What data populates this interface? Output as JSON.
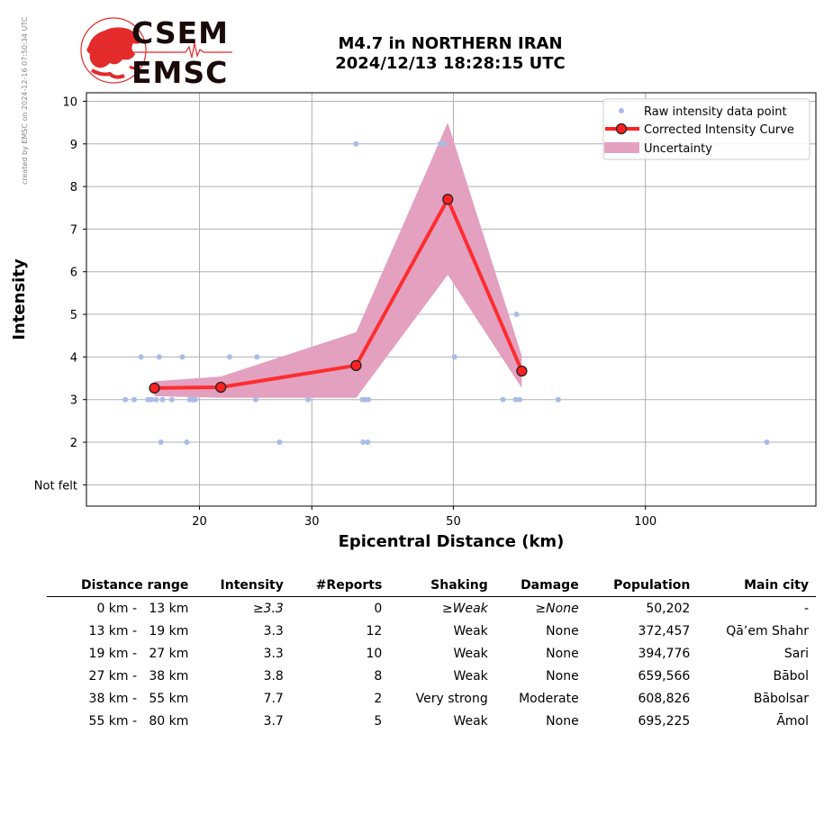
{
  "credit": "created by EMSC on 2024-12-16 07:50:34 UTC",
  "logo": {
    "line1": "CSEM",
    "line2": "EMSC"
  },
  "title": {
    "line1": "M4.7 in NORTHERN IRAN",
    "line2": "2024/12/13 18:28:15 UTC"
  },
  "chart_data": {
    "type": "line",
    "xlabel": "Epicentral Distance (km)",
    "ylabel": "Intensity",
    "x_scale": "log",
    "x_ticks": [
      20,
      30,
      50,
      100
    ],
    "y_ticks": [
      {
        "v": 1,
        "label": "Not felt"
      },
      {
        "v": 2,
        "label": "2"
      },
      {
        "v": 3,
        "label": "3"
      },
      {
        "v": 4,
        "label": "4"
      },
      {
        "v": 5,
        "label": "5"
      },
      {
        "v": 6,
        "label": "6"
      },
      {
        "v": 7,
        "label": "7"
      },
      {
        "v": 8,
        "label": "8"
      },
      {
        "v": 9,
        "label": "9"
      },
      {
        "v": 10,
        "label": "10"
      }
    ],
    "xlim": [
      13.3,
      185
    ],
    "ylim": [
      0.5,
      10.2
    ],
    "grid": true,
    "legend_position": "top-right",
    "legend": [
      "Raw intensity data point",
      "Corrected Intensity Curve",
      "Uncertainty"
    ],
    "colors": {
      "raw": "#aabbe8",
      "curve": "#ff2020",
      "marker_edge": "#222222",
      "band": "#e4a0bf"
    },
    "raw_points": [
      [
        15.3,
        3
      ],
      [
        15.8,
        3
      ],
      [
        16.2,
        4
      ],
      [
        16.6,
        3
      ],
      [
        16.8,
        3
      ],
      [
        17.1,
        3
      ],
      [
        17.3,
        4
      ],
      [
        17.4,
        2
      ],
      [
        17.5,
        3
      ],
      [
        18.1,
        3
      ],
      [
        18.8,
        4
      ],
      [
        19.1,
        2
      ],
      [
        19.3,
        3
      ],
      [
        19.5,
        3
      ],
      [
        19.7,
        3
      ],
      [
        22.3,
        4
      ],
      [
        24.5,
        3
      ],
      [
        24.6,
        4
      ],
      [
        26.7,
        2
      ],
      [
        29.6,
        3
      ],
      [
        35.2,
        9
      ],
      [
        36.0,
        3
      ],
      [
        36.1,
        2
      ],
      [
        36.4,
        3
      ],
      [
        36.7,
        2
      ],
      [
        36.8,
        3
      ],
      [
        47.7,
        9
      ],
      [
        48.4,
        9
      ],
      [
        50.2,
        4
      ],
      [
        59.8,
        3
      ],
      [
        62.6,
        3
      ],
      [
        62.8,
        5
      ],
      [
        63.5,
        3
      ],
      [
        73.0,
        3
      ],
      [
        155.0,
        2
      ]
    ],
    "curve": {
      "name": "Corrected Intensity Curve",
      "x": [
        17.0,
        21.6,
        35.2,
        49.0,
        64.0
      ],
      "y": [
        3.27,
        3.29,
        3.8,
        7.7,
        3.67
      ]
    },
    "uncertainty": {
      "x": [
        17.0,
        21.6,
        35.2,
        49.0,
        64.0
      ],
      "lower": [
        3.08,
        3.04,
        3.04,
        5.93,
        3.27
      ],
      "upper": [
        3.43,
        3.54,
        4.58,
        9.5,
        4.03
      ]
    }
  },
  "table": {
    "headers": [
      "Distance range",
      "Intensity",
      "#Reports",
      "Shaking",
      "Damage",
      "Population",
      "Main city"
    ],
    "rows": [
      {
        "cells": [
          "0 km -   13 km",
          "≥3.3",
          "0",
          "≥Weak",
          "≥None",
          "50,202",
          "-"
        ],
        "italic": [
          1,
          3,
          4
        ]
      },
      {
        "cells": [
          "13 km -   19 km",
          "3.3",
          "12",
          "Weak",
          "None",
          "372,457",
          "Qāʼem Shahr"
        ],
        "italic": []
      },
      {
        "cells": [
          "19 km -   27 km",
          "3.3",
          "10",
          "Weak",
          "None",
          "394,776",
          "Sari"
        ],
        "italic": []
      },
      {
        "cells": [
          "27 km -   38 km",
          "3.8",
          "8",
          "Weak",
          "None",
          "659,566",
          "Bābol"
        ],
        "italic": []
      },
      {
        "cells": [
          "38 km -   55 km",
          "7.7",
          "2",
          "Very strong",
          "Moderate",
          "608,826",
          "Bābolsar"
        ],
        "italic": []
      },
      {
        "cells": [
          "55 km -   80 km",
          "3.7",
          "5",
          "Weak",
          "None",
          "695,225",
          "Āmol"
        ],
        "italic": []
      }
    ]
  }
}
